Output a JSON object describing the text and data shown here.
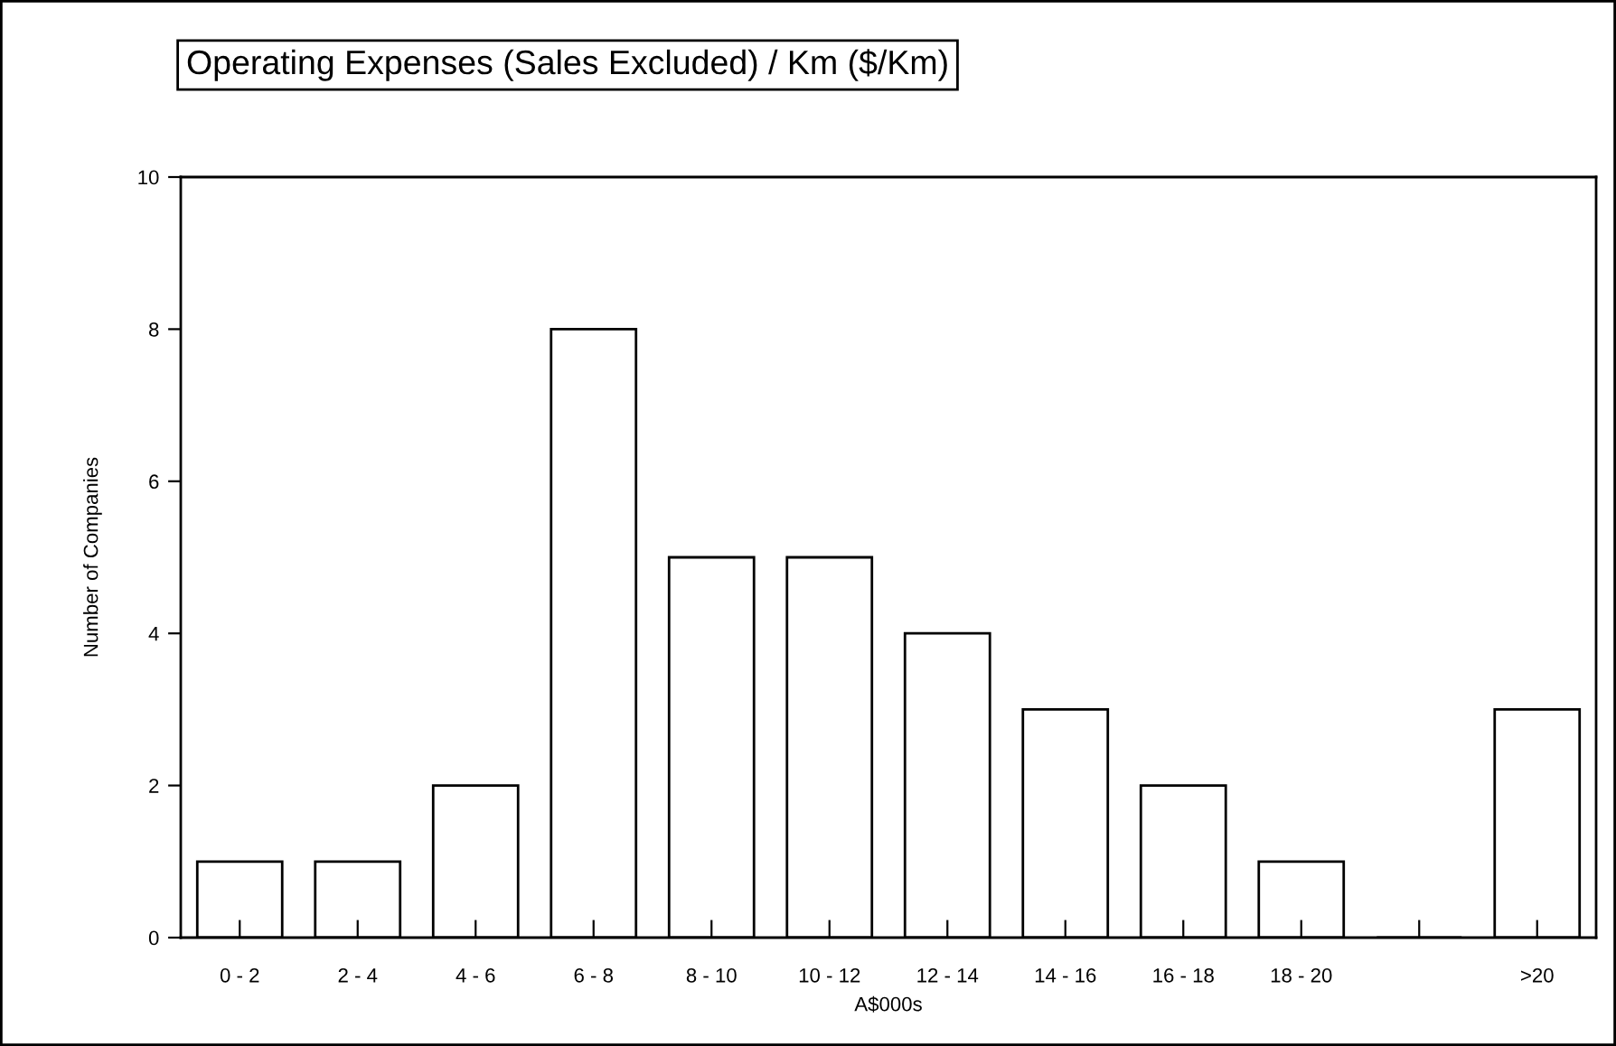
{
  "chart_data": {
    "type": "bar",
    "title": "Operating Expenses (Sales Excluded) / Km ($/Km)",
    "xlabel": "A$000s",
    "ylabel": "Number of Companies",
    "categories": [
      "0 - 2",
      "2 - 4",
      "4 - 6",
      "6 - 8",
      "8 - 10",
      "10 - 12",
      "12 - 14",
      "14 - 16",
      "16 - 18",
      "18 - 20",
      null,
      ">20"
    ],
    "values": [
      1,
      1,
      2,
      8,
      5,
      5,
      4,
      3,
      2,
      1,
      0,
      3
    ],
    "color": "#000000",
    "ylim": [
      0,
      10
    ],
    "yticks": [
      0,
      2,
      4,
      6,
      8,
      10
    ],
    "grid": false
  }
}
